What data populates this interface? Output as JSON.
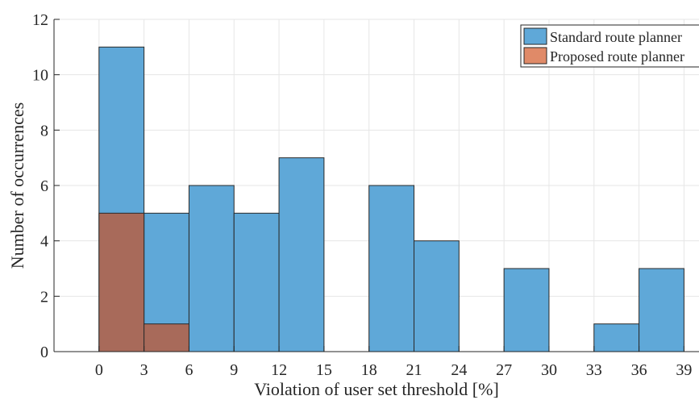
{
  "chart_data": {
    "type": "bar",
    "xlabel": "Violation of user set threshold [%]",
    "ylabel": "Number of occurrences",
    "xlim": [
      -3,
      40
    ],
    "ylim": [
      0,
      12
    ],
    "bin_width": 3,
    "grid": true,
    "legend_position": "top-right",
    "x_ticks": [
      0,
      3,
      6,
      9,
      12,
      15,
      18,
      21,
      24,
      27,
      30,
      33,
      36,
      39
    ],
    "y_ticks": [
      0,
      2,
      4,
      6,
      8,
      10,
      12
    ],
    "x_tick_labels": [
      "0",
      "3",
      "6",
      "9",
      "12",
      "15",
      "18",
      "21",
      "24",
      "27",
      "30",
      "33",
      "36",
      "39"
    ],
    "y_tick_labels": [
      "0",
      "2",
      "4",
      "6",
      "8",
      "10",
      "12"
    ],
    "bin_edges": [
      0,
      3,
      6,
      9,
      12,
      15,
      18,
      21,
      24,
      27,
      30,
      33,
      36,
      39
    ],
    "series": [
      {
        "name": "Standard route planner",
        "color": "#5fa8d8",
        "values": [
          11,
          5,
          6,
          5,
          7,
          0,
          6,
          4,
          0,
          3,
          0,
          1,
          3
        ]
      },
      {
        "name": "Proposed route planner",
        "color": "#a86a5a",
        "legend_color": "#e08a68",
        "values": [
          5,
          1,
          0,
          0,
          0,
          0,
          0,
          0,
          0,
          0,
          0,
          0,
          0
        ]
      }
    ]
  }
}
